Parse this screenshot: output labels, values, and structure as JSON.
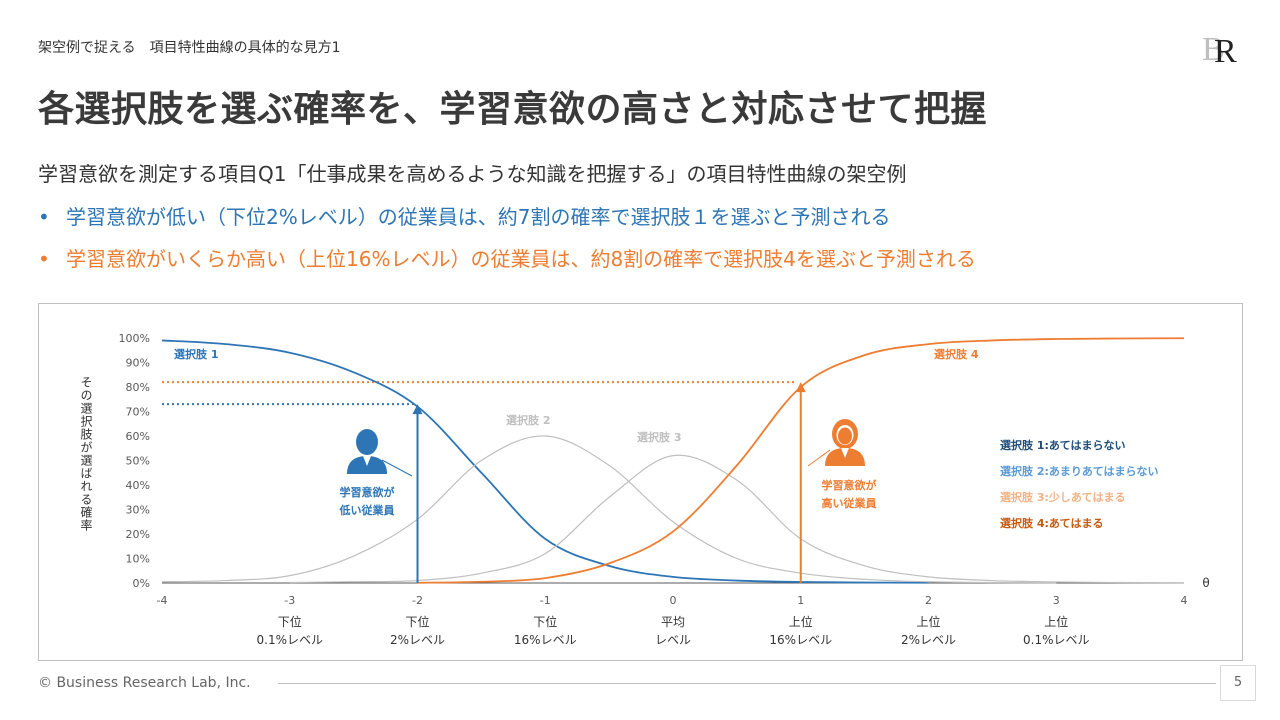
{
  "header": {
    "subtitle": "架空例で捉える　項目特性曲線の具体的な見方1",
    "title": "各選択肢を選ぶ確率を、学習意欲の高さと対応させて把握",
    "logo_text": "BR"
  },
  "lead": "学習意欲を測定する項目Q1「仕事成果を高めるような知識を把握する」の項目特性曲線の架空例",
  "bullets": [
    {
      "marker": "•",
      "text": "学習意欲が低い（下位2%レベル）の従業員は、約7割の確率で選択肢１を選ぶと予測される",
      "color": "#2E75B6"
    },
    {
      "marker": "•",
      "text": "学習意欲がいくらか高い（上位16%レベル）の従業員は、約8割の確率で選択肢4を選ぶと予測される",
      "color": "#ED7D31"
    }
  ],
  "chart_data": {
    "type": "line",
    "ylabel": "その選択肢が選ばれる確率",
    "xlabel": "θ",
    "xlim": [
      -4,
      4
    ],
    "ylim": [
      0,
      1
    ],
    "x_ticks": [
      -4,
      -3,
      -2,
      -1,
      0,
      1,
      2,
      3,
      4
    ],
    "y_ticks": [
      "0%",
      "10%",
      "20%",
      "30%",
      "40%",
      "50%",
      "60%",
      "70%",
      "80%",
      "90%",
      "100%"
    ],
    "x_sublabels": [
      {
        "x": -3,
        "lines": [
          "下位",
          "0.1%レベル"
        ]
      },
      {
        "x": -2,
        "lines": [
          "下位",
          "2%レベル"
        ]
      },
      {
        "x": -1,
        "lines": [
          "下位",
          "16%レベル"
        ]
      },
      {
        "x": 0,
        "lines": [
          "平均",
          "レベル"
        ]
      },
      {
        "x": 1,
        "lines": [
          "上位",
          "16%レベル"
        ]
      },
      {
        "x": 2,
        "lines": [
          "上位",
          "2%レベル"
        ]
      },
      {
        "x": 3,
        "lines": [
          "上位",
          "0.1%レベル"
        ]
      }
    ],
    "series": [
      {
        "name": "選択肢 1",
        "color": "#2E75B6",
        "x": [
          -4,
          -3.5,
          -3,
          -2.5,
          -2,
          -1.5,
          -1,
          -0.5,
          0,
          0.5,
          1,
          1.5,
          2
        ],
        "y": [
          0.99,
          0.975,
          0.94,
          0.86,
          0.72,
          0.45,
          0.18,
          0.07,
          0.025,
          0.01,
          0.004,
          0.002,
          0.001
        ]
      },
      {
        "name": "選択肢 2",
        "color": "#BFBFBF",
        "x": [
          -4,
          -3.5,
          -3,
          -2.5,
          -2,
          -1.5,
          -1,
          -0.5,
          0,
          0.5,
          1,
          1.5,
          2,
          2.5,
          3
        ],
        "y": [
          0.005,
          0.01,
          0.03,
          0.11,
          0.26,
          0.5,
          0.6,
          0.48,
          0.25,
          0.1,
          0.04,
          0.015,
          0.005,
          0.002,
          0.001
        ]
      },
      {
        "name": "選択肢 3",
        "color": "#BFBFBF",
        "x": [
          -3,
          -2.5,
          -2,
          -1.5,
          -1,
          -0.5,
          0,
          0.5,
          1,
          1.5,
          2,
          2.5,
          3,
          3.5,
          4
        ],
        "y": [
          0.002,
          0.005,
          0.01,
          0.04,
          0.12,
          0.35,
          0.52,
          0.42,
          0.18,
          0.07,
          0.025,
          0.01,
          0.004,
          0.002,
          0.001
        ]
      },
      {
        "name": "選択肢 4",
        "color": "#ED7D31",
        "x": [
          -2,
          -1.5,
          -1,
          -0.5,
          0,
          0.5,
          1,
          1.5,
          2,
          2.5,
          3,
          3.5,
          4
        ],
        "y": [
          0.001,
          0.005,
          0.02,
          0.08,
          0.21,
          0.48,
          0.8,
          0.93,
          0.975,
          0.99,
          0.996,
          0.998,
          0.999
        ]
      }
    ],
    "markers": [
      {
        "x": -2,
        "y": 0.73,
        "color": "#2E75B6",
        "label": [
          "学習意欲が",
          "低い従業員"
        ]
      },
      {
        "x": 1,
        "y": 0.82,
        "color": "#ED7D31",
        "label": [
          "学習意欲が",
          "高い従業員"
        ]
      }
    ],
    "legend": [
      {
        "text": "選択肢 1:あてはまらない",
        "color": "#1F4E79"
      },
      {
        "text": "選択肢 2:あまりあてはまらない",
        "color": "#5B9BD5"
      },
      {
        "text": "選択肢 3:少しあてはまる",
        "color": "#F4B183"
      },
      {
        "text": "選択肢 4:あてはまる",
        "color": "#C55A11"
      }
    ]
  },
  "footer": {
    "copyright": "© Business Research Lab, Inc.",
    "page": "5"
  }
}
